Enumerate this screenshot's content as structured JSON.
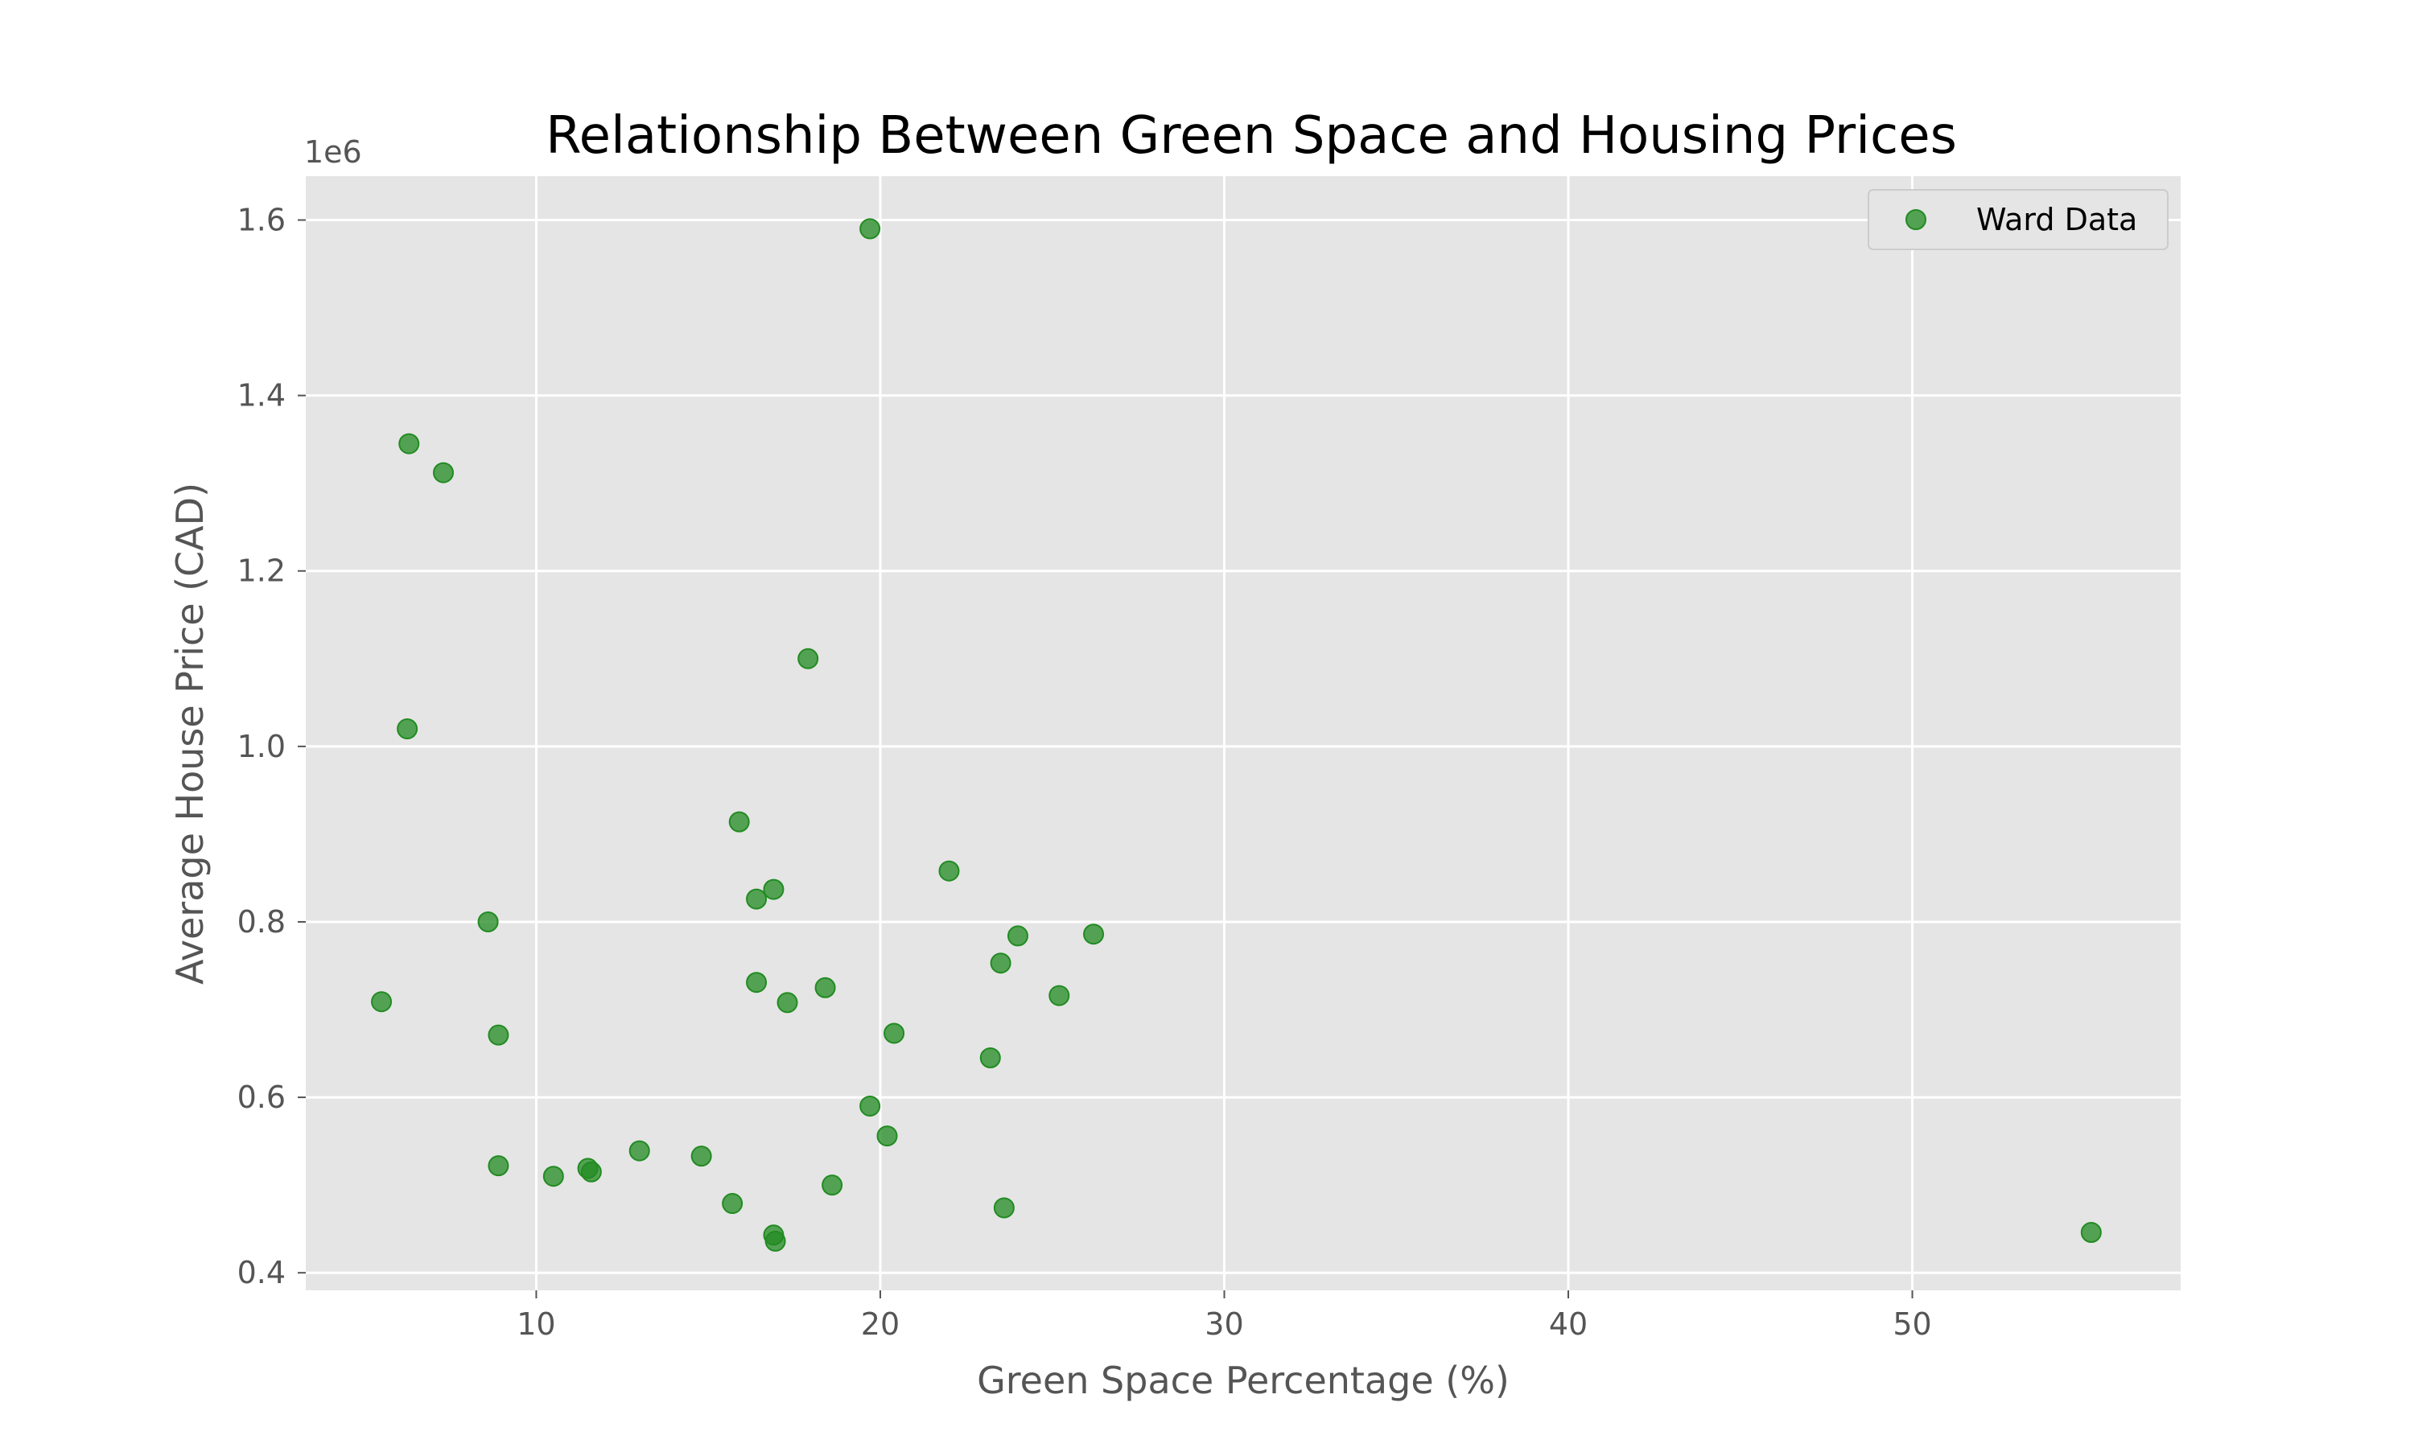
{
  "chart_data": {
    "type": "scatter",
    "title": "Relationship Between Green Space and Housing Prices",
    "xlabel": "Green Space Percentage (%)",
    "ylabel": "Average House Price (CAD)",
    "y_offset_label": "1e6",
    "xlim": [
      3.3,
      57.8
    ],
    "ylim": [
      0.38,
      1.65
    ],
    "x_ticks": [
      10,
      20,
      30,
      40,
      50
    ],
    "x_tick_labels": [
      "10",
      "20",
      "30",
      "40",
      "50"
    ],
    "y_ticks": [
      0.4,
      0.6,
      0.8,
      1.0,
      1.2,
      1.4,
      1.6
    ],
    "y_tick_labels": [
      "0.4",
      "0.6",
      "0.8",
      "1.0",
      "1.2",
      "1.4",
      "1.6"
    ],
    "grid": true,
    "legend_position": "top-right",
    "colors": {
      "marker": "#228B22",
      "background": "#e5e5e5",
      "grid": "#ffffff"
    },
    "series": [
      {
        "name": "Ward Data",
        "points": [
          {
            "x": 19.7,
            "y": 1.59
          },
          {
            "x": 6.3,
            "y": 1.345
          },
          {
            "x": 7.3,
            "y": 1.312
          },
          {
            "x": 17.9,
            "y": 1.1
          },
          {
            "x": 6.25,
            "y": 1.02
          },
          {
            "x": 15.9,
            "y": 0.914
          },
          {
            "x": 22.0,
            "y": 0.858
          },
          {
            "x": 16.9,
            "y": 0.837
          },
          {
            "x": 16.4,
            "y": 0.826
          },
          {
            "x": 8.6,
            "y": 0.8
          },
          {
            "x": 26.2,
            "y": 0.786
          },
          {
            "x": 24.0,
            "y": 0.784
          },
          {
            "x": 23.5,
            "y": 0.753
          },
          {
            "x": 16.4,
            "y": 0.731
          },
          {
            "x": 18.4,
            "y": 0.725
          },
          {
            "x": 25.2,
            "y": 0.716
          },
          {
            "x": 5.5,
            "y": 0.709
          },
          {
            "x": 17.3,
            "y": 0.708
          },
          {
            "x": 20.4,
            "y": 0.673
          },
          {
            "x": 8.9,
            "y": 0.671
          },
          {
            "x": 23.2,
            "y": 0.645
          },
          {
            "x": 19.7,
            "y": 0.59
          },
          {
            "x": 20.2,
            "y": 0.556
          },
          {
            "x": 13.0,
            "y": 0.539
          },
          {
            "x": 14.8,
            "y": 0.533
          },
          {
            "x": 8.9,
            "y": 0.522
          },
          {
            "x": 11.5,
            "y": 0.519
          },
          {
            "x": 11.6,
            "y": 0.515
          },
          {
            "x": 10.5,
            "y": 0.51
          },
          {
            "x": 18.6,
            "y": 0.5
          },
          {
            "x": 15.7,
            "y": 0.479
          },
          {
            "x": 23.6,
            "y": 0.474
          },
          {
            "x": 55.2,
            "y": 0.446
          },
          {
            "x": 16.9,
            "y": 0.443
          },
          {
            "x": 16.95,
            "y": 0.436
          }
        ]
      }
    ]
  }
}
